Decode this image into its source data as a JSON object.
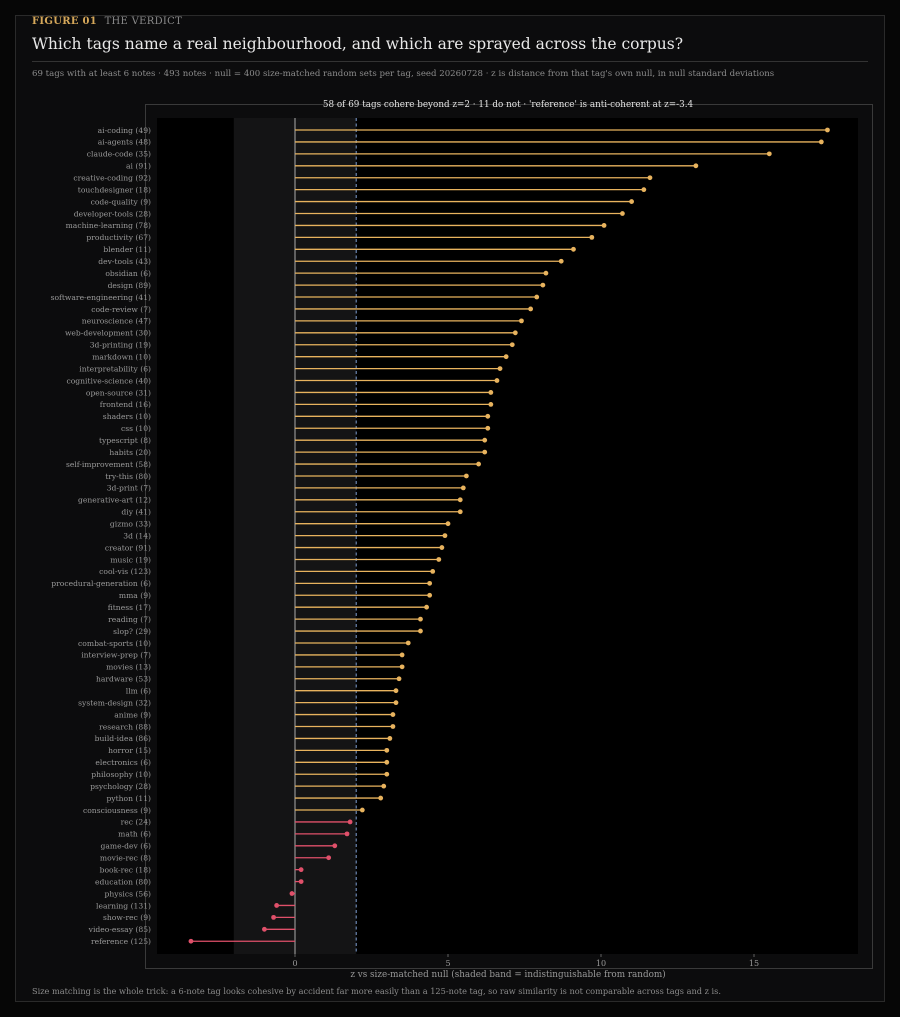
{
  "figure": {
    "number": "FIGURE 01",
    "label": "THE VERDICT",
    "title": "Which tags name a real neighbourhood, and which are sprayed across the corpus?",
    "subtitle": "69 tags with at least 6 notes  ·  493 notes  ·  null = 400 size-matched random sets per tag, seed 20260728  ·  z is distance from that tag's own null, in null standard deviations",
    "footnote": "Size matching is the whole trick: a 6-note tag looks cohesive by accident far more easily than a 125-note tag, so raw similarity is not comparable across tags and z is."
  },
  "colors": {
    "background": "#0c0c0d",
    "plot_background": "#000000",
    "band": "#141415",
    "coherent": "#e8b35e",
    "not_coherent": "#e0506a",
    "threshold": "#7f9fd4"
  },
  "chart_data": {
    "type": "lollipop",
    "orientation": "horizontal",
    "annotation": "58 of 69 tags cohere beyond z=2  ·  11 do not  ·  'reference' is anti-coherent at z=-3.4",
    "xlabel": "z vs size-matched null  (shaded band = indistinguishable from random)",
    "xlim": [
      -4.8,
      18.5
    ],
    "xticks": [
      0,
      5,
      10,
      15
    ],
    "band": [
      -2,
      2
    ],
    "threshold": 2,
    "categories": [
      "ai-coding  (49)",
      "ai-agents  (48)",
      "claude-code  (35)",
      "ai  (91)",
      "creative-coding  (92)",
      "touchdesigner  (18)",
      "code-quality  (9)",
      "developer-tools  (28)",
      "machine-learning  (78)",
      "productivity  (67)",
      "blender  (11)",
      "dev-tools  (43)",
      "obsidian  (6)",
      "design  (89)",
      "software-engineering  (41)",
      "code-review  (7)",
      "neuroscience  (47)",
      "web-development  (30)",
      "3d-printing  (19)",
      "markdown  (10)",
      "interpretability  (6)",
      "cognitive-science  (40)",
      "open-source  (31)",
      "frontend  (16)",
      "shaders  (10)",
      "css  (10)",
      "typescript  (8)",
      "habits  (20)",
      "self-improvement  (58)",
      "try-this  (80)",
      "3d-print  (7)",
      "generative-art  (12)",
      "diy  (41)",
      "gizmo  (33)",
      "3d  (14)",
      "creator  (91)",
      "music  (19)",
      "cool-vis  (123)",
      "procedural-generation  (6)",
      "mma  (9)",
      "fitness  (17)",
      "reading  (7)",
      "slop?  (29)",
      "combat-sports  (10)",
      "interview-prep  (7)",
      "movies  (13)",
      "hardware  (53)",
      "llm  (6)",
      "system-design  (32)",
      "anime  (9)",
      "research  (88)",
      "build-idea  (86)",
      "horror  (15)",
      "electronics  (6)",
      "philosophy  (10)",
      "psychology  (28)",
      "python  (11)",
      "consciousness  (9)",
      "rec  (24)",
      "math  (6)",
      "game-dev  (6)",
      "movie-rec  (8)",
      "book-rec  (18)",
      "education  (80)",
      "physics  (56)",
      "learning  (131)",
      "show-rec  (9)",
      "video-essay  (85)",
      "reference  (125)"
    ],
    "values": [
      17.4,
      17.2,
      15.5,
      13.1,
      11.6,
      11.4,
      11.0,
      10.7,
      10.1,
      9.7,
      9.1,
      8.7,
      8.2,
      8.1,
      7.9,
      7.7,
      7.4,
      7.2,
      7.1,
      6.9,
      6.7,
      6.6,
      6.4,
      6.4,
      6.3,
      6.3,
      6.2,
      6.2,
      6.0,
      5.6,
      5.5,
      5.4,
      5.4,
      5.0,
      4.9,
      4.8,
      4.7,
      4.5,
      4.4,
      4.4,
      4.3,
      4.1,
      4.1,
      3.7,
      3.5,
      3.5,
      3.4,
      3.3,
      3.3,
      3.2,
      3.2,
      3.1,
      3.0,
      3.0,
      3.0,
      2.9,
      2.8,
      2.2,
      1.8,
      1.7,
      1.3,
      1.1,
      0.2,
      0.2,
      -0.1,
      -0.6,
      -0.7,
      -1.0,
      -3.4
    ],
    "grid": false,
    "legend": "none"
  }
}
